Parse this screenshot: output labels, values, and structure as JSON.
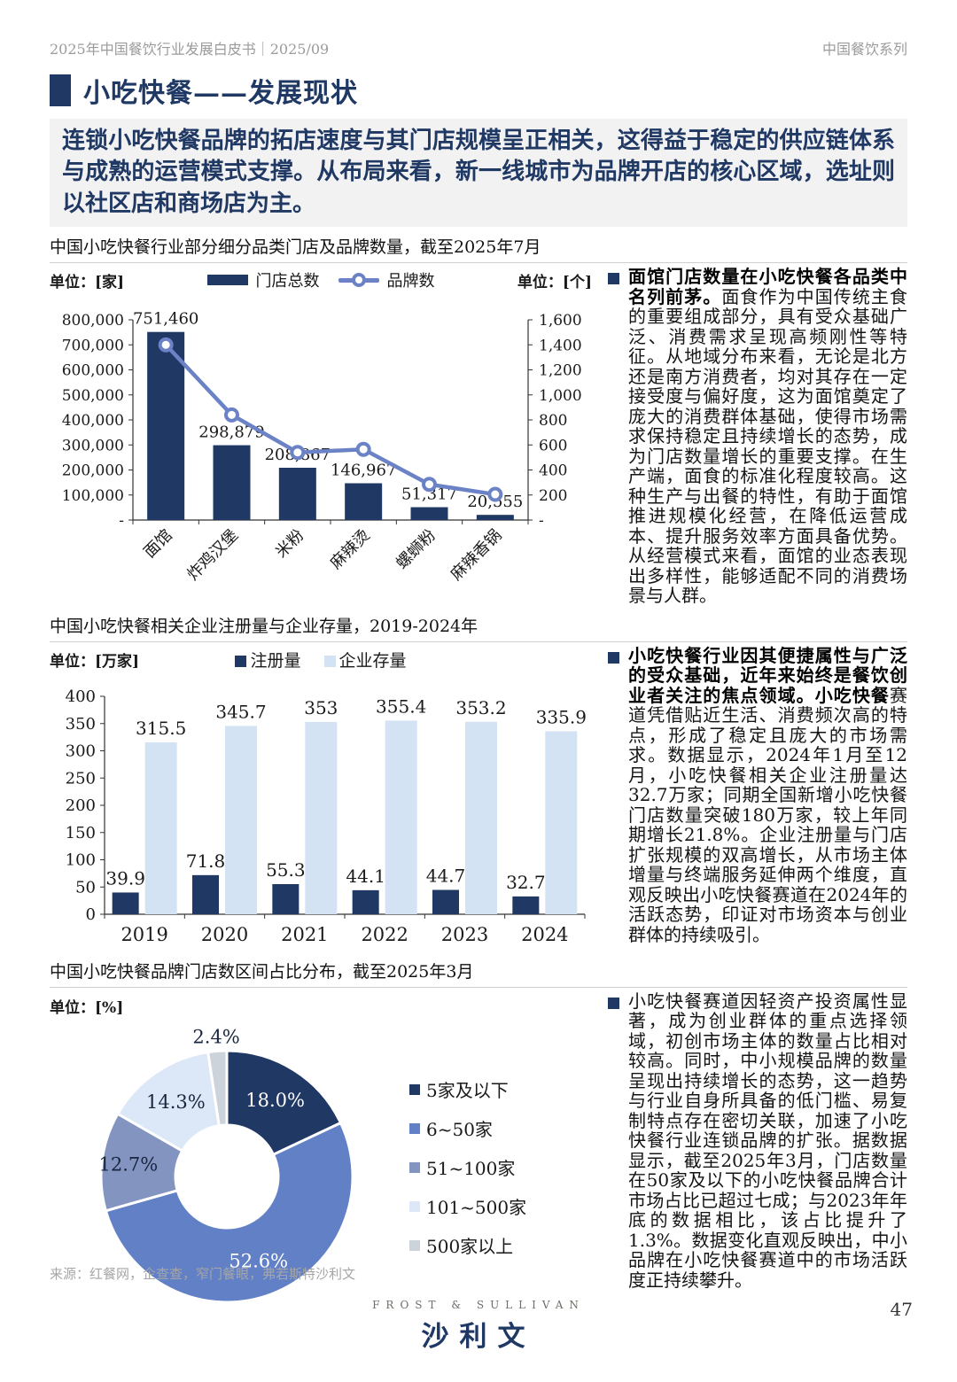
{
  "page": {
    "header_left": "2025年中国餐饮行业发展白皮书｜2025/09",
    "header_right": "中国餐饮系列",
    "title": "小吃快餐——发展现状",
    "intro": "连锁小吃快餐品牌的拓店速度与其门店规模呈正相关，这得益于稳定的供应链体系与成熟的运营模式支撑。从布局来看，新一线城市为品牌开店的核心区域，选址则以社区店和商场店为主。",
    "source": "来源：红餐网，企查查，窄门餐眼，弗若斯特沙利文",
    "logo_top": "FROST & SULLIVAN",
    "logo_main": "沙利文",
    "page_number": "47"
  },
  "colors": {
    "navy": "#1F3864",
    "line_blue": "#6B82C6",
    "light_bar": "#D3E3F4",
    "donut_palette": [
      "#1F3864",
      "#6280C6",
      "#8494C0",
      "#DCE8F7",
      "#CDD3DB"
    ],
    "axis": "#333333",
    "highlight_bg": "#F2F2F2"
  },
  "sections": [
    {
      "title": "中国小吃快餐行业部分细分品类门店及品牌数量，截至2025年7月",
      "unit_left": "单位：[家]",
      "unit_right": "单位：[个]"
    },
    {
      "title": "中国小吃快餐相关企业注册量与企业存量，2019-2024年",
      "unit_left": "单位：[万家]"
    },
    {
      "title": "中国小吃快餐品牌门店数区间占比分布，截至2025年3月",
      "unit_left": "单位：[%]"
    }
  ],
  "chart_data": [
    {
      "type": "bar",
      "subtype": "bar-line-combo",
      "title": "中国小吃快餐行业部分细分品类门店及品牌数量，截至2025年7月",
      "categories": [
        "面馆",
        "炸鸡汉堡",
        "米粉",
        "麻辣烫",
        "螺蛳粉",
        "麻辣香锅"
      ],
      "series": [
        {
          "name": "门店总数",
          "kind": "bar",
          "axis": "left",
          "values": [
            751460,
            298879,
            208867,
            146967,
            51317,
            20555
          ],
          "labels": [
            "751,460",
            "298,879",
            "208,867",
            "146,967",
            "51,317",
            "20,555"
          ]
        },
        {
          "name": "品牌数",
          "kind": "line",
          "axis": "right",
          "values": [
            1400,
            840,
            540,
            565,
            285,
            205
          ],
          "estimated": true
        }
      ],
      "left_axis": {
        "unit": "单位：[家]",
        "min": 0,
        "max": 800000,
        "step": 100000
      },
      "right_axis": {
        "unit": "单位：[个]",
        "min": 0,
        "max": 1600,
        "step": 200
      },
      "grid": false,
      "legend_position": "top"
    },
    {
      "type": "bar",
      "title": "中国小吃快餐相关企业注册量与企业存量，2019-2024年",
      "categories": [
        "2019",
        "2020",
        "2021",
        "2022",
        "2023",
        "2024"
      ],
      "series": [
        {
          "name": "注册量",
          "values": [
            39.9,
            71.8,
            55.3,
            44.1,
            44.7,
            32.7
          ],
          "labels": [
            "39.9",
            "71.8",
            "55.3",
            "44.1",
            "44.7",
            "32.7"
          ]
        },
        {
          "name": "企业存量",
          "values": [
            315.5,
            345.7,
            353,
            355.4,
            353.2,
            335.9
          ],
          "labels": [
            "315.5",
            "345.7",
            "353",
            "355.4",
            "353.2",
            "335.9"
          ]
        }
      ],
      "ylabel": "单位：[万家]",
      "ylim": [
        0,
        400
      ],
      "ystep": 50,
      "grid": false,
      "legend_position": "top"
    },
    {
      "type": "pie",
      "title": "中国小吃快餐品牌门店数区间占比分布，截至2025年3月",
      "labels": [
        "5家及以下",
        "6~50家",
        "51~100家",
        "101~500家",
        "500家以上"
      ],
      "values": [
        18.0,
        52.6,
        12.7,
        14.3,
        2.4
      ],
      "display": [
        "18.0%",
        "52.6%",
        "12.7%",
        "14.3%",
        "2.4%"
      ],
      "unit": "单位：[%]",
      "legend_position": "right",
      "donut": true
    }
  ],
  "bullets": [
    {
      "bold": "面馆门店数量在小吃快餐各品类中名列前茅。",
      "text": "面食作为中国传统主食的重要组成部分，具有受众基础广泛、消费需求呈现高频刚性等特征。从地域分布来看，无论是北方还是南方消费者，均对其存在一定接受度与偏好度，这为面馆奠定了庞大的消费群体基础，使得市场需求保持稳定且持续增长的态势，成为门店数量增长的重要支撑。在生产端，面食的标准化程度较高。这种生产与出餐的特性，有助于面馆推进规模化经营，在降低运营成本、提升服务效率方面具备优势。从经营模式来看，面馆的业态表现出多样性，能够适配不同的消费场景与人群。"
    },
    {
      "bold": "小吃快餐行业因其便捷属性与广泛的受众基础，近年来始终是餐饮创业者关注的焦点领域。小吃快餐",
      "text": "赛道凭借贴近生活、消费频次高的特点，形成了稳定且庞大的市场需求。数据显示，2024年1月至12月，小吃快餐相关企业注册量达32.7万家；同期全国新增小吃快餐门店数量突破180万家，较上年同期增长21.8%。企业注册量与门店扩张规模的双高增长，从市场主体增量与终端服务延伸两个维度，直观反映出小吃快餐赛道在2024年的活跃态势，印证对市场资本与创业群体的持续吸引。"
    },
    {
      "bold": "",
      "text": "小吃快餐赛道因轻资产投资属性显著，成为创业群体的重点选择领域，初创市场主体的数量占比相对较高。同时，中小规模品牌的数量呈现出持续增长的态势，这一趋势与行业自身所具备的低门槛、易复制特点存在密切关联，加速了小吃快餐行业连锁品牌的扩张。据数据显示，截至2025年3月，门店数量在50家及以下的小吃快餐品牌合计市场占比已超过七成；与2023年年底的数据相比，该占比提升了1.3%。数据变化直观反映出，中小品牌在小吃快餐赛道中的市场活跃度正持续攀升。"
    }
  ]
}
